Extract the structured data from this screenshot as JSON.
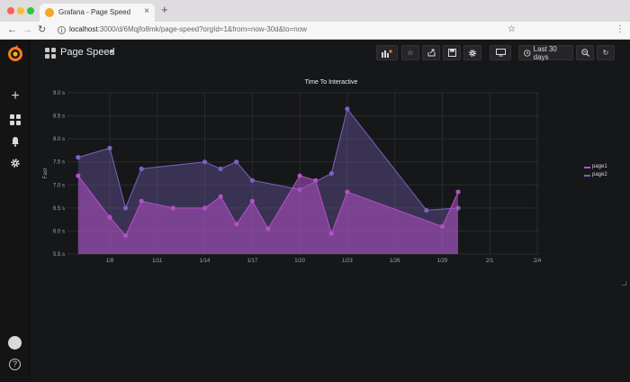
{
  "browser": {
    "tab_title": "Grafana - Page Speed",
    "tab_close": "×",
    "new_tab": "+",
    "url_host": "localhost",
    "url_rest": ":3000/d/6Mqjfo8mk/page-speed?orgId=1&from=now-30d&to=now"
  },
  "dashboard": {
    "title": "Page Speed",
    "title_caret": "▾",
    "time_range": "Last 30 days"
  },
  "colors": {
    "page1": "#b351c6",
    "page2": "#7b63be",
    "background": "#161719"
  },
  "chart_data": {
    "type": "area",
    "title": "Time To Interactive",
    "xlabel": "",
    "ylabel": "Fast",
    "x_ticks": [
      "1/8",
      "1/11",
      "1/14",
      "1/17",
      "1/20",
      "1/23",
      "1/26",
      "1/29",
      "2/1",
      "2/4"
    ],
    "y_ticks": [
      "5.5 s",
      "6.0 s",
      "6.5 s",
      "7.0 s",
      "7.5 s",
      "8.0 s",
      "8.5 s",
      "9.0 s"
    ],
    "ylim": [
      5.5,
      9.0
    ],
    "x_range": [
      "2019-01-05",
      "2019-02-04"
    ],
    "grid": true,
    "legend_position": "right",
    "series": [
      {
        "name": "page1",
        "x": [
          "2019-01-06",
          "2019-01-08",
          "2019-01-09",
          "2019-01-10",
          "2019-01-12",
          "2019-01-14",
          "2019-01-15",
          "2019-01-16",
          "2019-01-17",
          "2019-01-18",
          "2019-01-20",
          "2019-01-21",
          "2019-01-22",
          "2019-01-23",
          "2019-01-29",
          "2019-01-30"
        ],
        "values": [
          7.2,
          6.3,
          5.9,
          6.65,
          6.5,
          6.5,
          6.75,
          6.15,
          6.65,
          6.05,
          7.2,
          7.1,
          5.95,
          6.85,
          6.1,
          6.85
        ],
        "color": "#b351c6"
      },
      {
        "name": "page2",
        "x": [
          "2019-01-06",
          "2019-01-08",
          "2019-01-09",
          "2019-01-10",
          "2019-01-14",
          "2019-01-15",
          "2019-01-16",
          "2019-01-17",
          "2019-01-20",
          "2019-01-22",
          "2019-01-23",
          "2019-01-28",
          "2019-01-30"
        ],
        "values": [
          7.6,
          7.8,
          6.5,
          7.35,
          7.5,
          7.35,
          7.5,
          7.1,
          6.9,
          7.25,
          8.65,
          6.45,
          6.5
        ],
        "color": "#7b63be"
      }
    ]
  }
}
